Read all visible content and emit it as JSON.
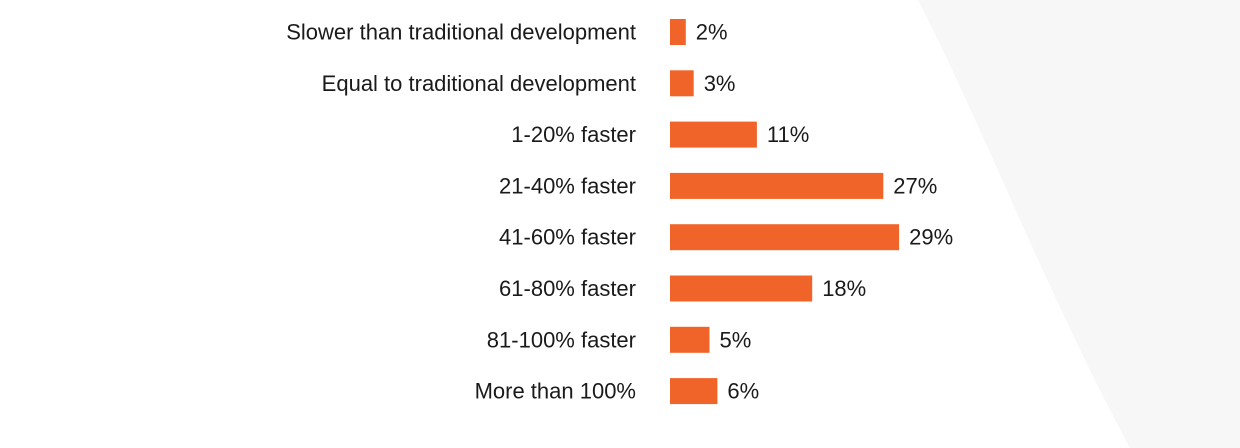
{
  "chart_data": {
    "type": "bar",
    "orientation": "horizontal",
    "categories": [
      "Slower than traditional development",
      "Equal to traditional development",
      "1-20% faster",
      "21-40% faster",
      "41-60% faster",
      "61-80% faster",
      "81-100% faster",
      "More than 100%"
    ],
    "values": [
      2,
      3,
      11,
      27,
      29,
      18,
      5,
      6
    ],
    "value_labels": [
      "2%",
      "3%",
      "11%",
      "27%",
      "29%",
      "18%",
      "5%",
      "6%"
    ],
    "title": "",
    "xlabel": "",
    "ylabel": "",
    "grid": false,
    "legend": "none"
  },
  "colors": {
    "bar": "#f0642a",
    "background": "#f7f7f7",
    "panel": "#ffffff",
    "text": "#1a1a1a"
  }
}
